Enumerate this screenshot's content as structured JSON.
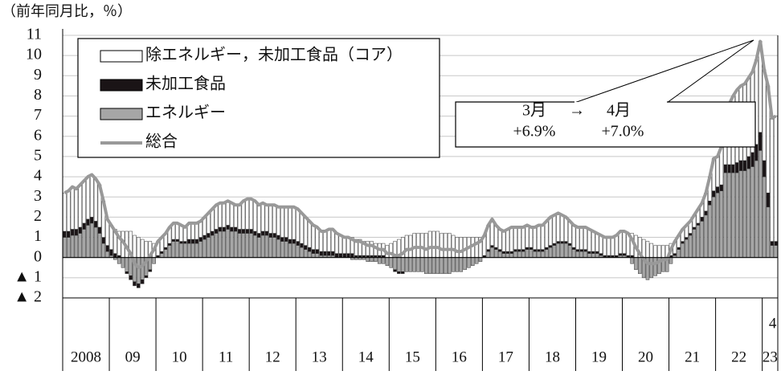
{
  "chart_data": {
    "type": "bar",
    "unit_label": "（前年同月比，％）",
    "ylim": [
      -2,
      11
    ],
    "yticks": [
      {
        "value": -2,
        "label": "▲ 2"
      },
      {
        "value": -1,
        "label": "▲ 1"
      },
      0,
      1,
      2,
      3,
      4,
      5,
      6,
      7,
      8,
      9,
      10,
      11
    ],
    "grid": true,
    "year_labels": [
      "2008",
      "09",
      "10",
      "11",
      "12",
      "13",
      "14",
      "15",
      "16",
      "17",
      "18",
      "19",
      "20",
      "21",
      "22",
      "23"
    ],
    "last_month_label": "4",
    "series": [
      {
        "name": "除エネルギー，未加工食品（コア）",
        "type": "bar",
        "color": "#ffffff",
        "values": [
          1.9,
          2.0,
          2.1,
          2.0,
          2.1,
          2.1,
          2.1,
          2.1,
          2.1,
          2.1,
          1.8,
          1.3,
          1.2,
          1.2,
          1.2,
          1.3,
          1.3,
          1.3,
          1.1,
          1.0,
          0.9,
          0.8,
          0.8,
          0.7,
          0.7,
          0.7,
          0.7,
          0.8,
          0.8,
          0.8,
          0.8,
          0.7,
          0.8,
          0.8,
          0.8,
          0.8,
          0.9,
          1.0,
          1.1,
          1.2,
          1.2,
          1.2,
          1.2,
          1.2,
          1.1,
          1.2,
          1.4,
          1.5,
          1.5,
          1.5,
          1.4,
          1.4,
          1.3,
          1.4,
          1.4,
          1.4,
          1.5,
          1.5,
          1.6,
          1.6,
          1.6,
          1.5,
          1.4,
          1.3,
          1.2,
          1.1,
          1.0,
          1.0,
          1.1,
          1.1,
          1.0,
          0.9,
          0.8,
          0.8,
          0.8,
          0.8,
          0.8,
          0.7,
          0.7,
          0.7,
          0.6,
          0.6,
          0.6,
          0.6,
          0.7,
          0.8,
          0.9,
          1.0,
          1.1,
          1.1,
          1.2,
          1.2,
          1.2,
          1.2,
          1.3,
          1.3,
          1.3,
          1.2,
          1.2,
          1.2,
          1.1,
          1.0,
          1.0,
          1.0,
          1.0,
          1.0,
          1.0,
          1.0,
          1.0,
          1.2,
          1.3,
          1.1,
          1.0,
          1.0,
          1.1,
          1.2,
          1.1,
          1.1,
          1.1,
          1.1,
          1.0,
          1.1,
          1.2,
          1.2,
          1.3,
          1.4,
          1.4,
          1.4,
          1.3,
          1.2,
          1.1,
          1.1,
          1.1,
          1.1,
          1.1,
          1.1,
          1.0,
          0.9,
          0.9,
          0.9,
          0.9,
          0.9,
          1.0,
          1.1,
          1.1,
          1.1,
          1.1,
          1.1,
          1.0,
          0.9,
          0.8,
          0.7,
          0.6,
          0.6,
          0.6,
          0.6,
          0.6,
          0.6,
          0.6,
          0.6,
          0.6,
          0.6,
          0.6,
          0.7,
          0.7,
          0.9,
          1.2,
          1.6,
          1.5,
          1.9,
          2.9,
          3.0,
          3.4,
          3.6,
          3.7,
          3.8,
          3.9,
          4.0,
          4.2,
          4.5,
          4.5,
          5.3,
          6.1,
          6.2
        ]
      },
      {
        "name": "未加工食品",
        "type": "bar",
        "color": "#1a1416",
        "values": [
          0.3,
          0.3,
          0.3,
          0.3,
          0.3,
          0.3,
          0.3,
          0.3,
          0.3,
          0.3,
          0.3,
          0.3,
          0.3,
          0.2,
          0.1,
          0.0,
          -0.1,
          -0.2,
          -0.2,
          -0.2,
          -0.2,
          -0.1,
          -0.1,
          0.0,
          0.1,
          0.1,
          0.1,
          0.1,
          0.1,
          0.1,
          0.1,
          0.1,
          0.2,
          0.2,
          0.2,
          0.2,
          0.2,
          0.2,
          0.2,
          0.2,
          0.2,
          0.2,
          0.2,
          0.2,
          0.2,
          0.2,
          0.2,
          0.2,
          0.2,
          0.2,
          0.2,
          0.2,
          0.2,
          0.2,
          0.2,
          0.2,
          0.2,
          0.2,
          0.2,
          0.2,
          0.2,
          0.2,
          0.2,
          0.2,
          0.2,
          0.2,
          0.2,
          0.2,
          0.2,
          0.2,
          0.2,
          0.2,
          0.2,
          0.2,
          0.2,
          0.1,
          0.1,
          0.1,
          0.1,
          0.1,
          0.1,
          0.1,
          0.1,
          0.0,
          0.0,
          -0.1,
          -0.1,
          -0.1,
          0.0,
          0.0,
          0.0,
          0.0,
          0.0,
          0.0,
          0.0,
          0.0,
          0.0,
          0.0,
          0.0,
          0.0,
          0.0,
          0.0,
          0.0,
          0.0,
          0.0,
          0.0,
          0.0,
          0.0,
          0.1,
          0.1,
          0.1,
          0.1,
          0.1,
          0.1,
          0.1,
          0.1,
          0.1,
          0.1,
          0.1,
          0.1,
          0.1,
          0.1,
          0.1,
          0.1,
          0.1,
          0.1,
          0.1,
          0.1,
          0.1,
          0.1,
          0.1,
          0.1,
          0.1,
          0.1,
          0.1,
          0.1,
          0.1,
          0.1,
          0.1,
          0.1,
          0.1,
          0.1,
          0.1,
          0.1,
          0.1,
          0.1,
          0.1,
          0.0,
          0.0,
          0.0,
          0.0,
          0.0,
          0.0,
          0.0,
          0.0,
          0.0,
          0.1,
          0.1,
          0.1,
          0.1,
          0.1,
          0.1,
          0.1,
          0.1,
          0.2,
          0.2,
          0.2,
          0.3,
          0.3,
          0.3,
          0.4,
          0.4,
          0.4,
          0.5,
          0.5,
          0.5,
          0.6,
          0.7,
          0.8,
          0.9,
          0.8,
          0.7,
          0.2,
          0.2
        ]
      },
      {
        "name": "エネルギー",
        "type": "bar",
        "color": "#a6a6a6",
        "values": [
          1.0,
          1.0,
          1.1,
          1.1,
          1.2,
          1.4,
          1.6,
          1.7,
          1.5,
          1.2,
          0.7,
          0.3,
          0.1,
          -0.1,
          -0.3,
          -0.5,
          -0.7,
          -0.9,
          -1.2,
          -1.3,
          -1.1,
          -0.9,
          -0.6,
          -0.3,
          0.0,
          0.2,
          0.4,
          0.6,
          0.8,
          0.8,
          0.7,
          0.7,
          0.7,
          0.7,
          0.7,
          0.8,
          0.9,
          1.0,
          1.1,
          1.2,
          1.3,
          1.3,
          1.4,
          1.3,
          1.3,
          1.2,
          1.2,
          1.2,
          1.2,
          1.1,
          1.0,
          1.1,
          1.1,
          1.0,
          1.0,
          0.9,
          0.8,
          0.8,
          0.7,
          0.7,
          0.6,
          0.5,
          0.4,
          0.3,
          0.2,
          0.2,
          0.1,
          0.1,
          0.1,
          0.1,
          0.0,
          0.0,
          0.0,
          0.0,
          -0.1,
          -0.1,
          -0.1,
          -0.1,
          -0.2,
          -0.2,
          -0.2,
          -0.3,
          -0.3,
          -0.4,
          -0.5,
          -0.6,
          -0.7,
          -0.7,
          -0.7,
          -0.7,
          -0.7,
          -0.7,
          -0.7,
          -0.8,
          -0.8,
          -0.8,
          -0.8,
          -0.8,
          -0.8,
          -0.8,
          -0.7,
          -0.7,
          -0.7,
          -0.6,
          -0.5,
          -0.4,
          -0.3,
          -0.2,
          0.0,
          0.3,
          0.5,
          0.4,
          0.3,
          0.2,
          0.2,
          0.2,
          0.3,
          0.3,
          0.3,
          0.4,
          0.4,
          0.3,
          0.3,
          0.3,
          0.4,
          0.5,
          0.6,
          0.7,
          0.7,
          0.7,
          0.6,
          0.4,
          0.3,
          0.3,
          0.3,
          0.2,
          0.2,
          0.2,
          0.1,
          0.0,
          0.0,
          0.0,
          0.0,
          0.1,
          0.1,
          0.0,
          -0.3,
          -0.6,
          -0.8,
          -1.0,
          -1.1,
          -1.0,
          -0.9,
          -0.8,
          -0.7,
          -0.7,
          -0.3,
          0.1,
          0.4,
          0.7,
          0.9,
          1.1,
          1.4,
          1.6,
          1.8,
          2.1,
          2.6,
          3.0,
          3.2,
          3.3,
          4.2,
          4.2,
          4.2,
          4.2,
          4.3,
          4.3,
          4.4,
          4.5,
          4.8,
          5.3,
          4.0,
          2.5,
          0.6,
          0.6
        ]
      },
      {
        "name": "総合",
        "type": "line",
        "color": "#999999",
        "values": [
          3.2,
          3.3,
          3.5,
          3.4,
          3.6,
          3.8,
          4.0,
          4.1,
          3.9,
          3.6,
          2.8,
          1.9,
          1.6,
          1.3,
          1.0,
          0.8,
          0.5,
          0.2,
          -0.3,
          -0.5,
          -0.4,
          -0.2,
          0.1,
          0.4,
          0.8,
          1.0,
          1.2,
          1.5,
          1.7,
          1.7,
          1.6,
          1.5,
          1.7,
          1.7,
          1.7,
          1.8,
          2.0,
          2.2,
          2.4,
          2.6,
          2.7,
          2.7,
          2.8,
          2.7,
          2.6,
          2.6,
          2.8,
          2.9,
          2.9,
          2.8,
          2.6,
          2.7,
          2.6,
          2.6,
          2.6,
          2.5,
          2.5,
          2.5,
          2.5,
          2.5,
          2.4,
          2.2,
          2.0,
          1.8,
          1.6,
          1.5,
          1.3,
          1.3,
          1.4,
          1.4,
          1.2,
          1.1,
          1.0,
          1.0,
          0.9,
          0.8,
          0.8,
          0.7,
          0.6,
          0.6,
          0.5,
          0.4,
          0.4,
          0.2,
          0.2,
          0.1,
          0.1,
          0.2,
          0.4,
          0.4,
          0.5,
          0.5,
          0.5,
          0.4,
          0.5,
          0.5,
          0.5,
          0.4,
          0.4,
          0.4,
          0.4,
          0.3,
          0.3,
          0.4,
          0.5,
          0.6,
          0.7,
          0.8,
          1.1,
          1.6,
          1.9,
          1.6,
          1.4,
          1.3,
          1.4,
          1.5,
          1.5,
          1.5,
          1.5,
          1.6,
          1.5,
          1.5,
          1.6,
          1.6,
          1.8,
          2.0,
          2.1,
          2.2,
          2.1,
          2.0,
          1.8,
          1.6,
          1.5,
          1.5,
          1.5,
          1.4,
          1.3,
          1.2,
          1.1,
          1.0,
          1.0,
          1.0,
          1.1,
          1.3,
          1.3,
          1.2,
          0.9,
          0.5,
          0.2,
          -0.1,
          -0.3,
          -0.3,
          -0.3,
          -0.2,
          -0.1,
          -0.1,
          0.4,
          0.8,
          1.1,
          1.4,
          1.6,
          1.8,
          2.1,
          2.4,
          2.7,
          3.2,
          4.0,
          4.9,
          5.0,
          5.5,
          7.5,
          7.6,
          8.0,
          8.3,
          8.5,
          8.6,
          8.9,
          9.2,
          9.8,
          10.7,
          9.3,
          8.5,
          6.9,
          7.0
        ]
      }
    ],
    "annotation": {
      "from": "3月",
      "arrow": "→",
      "to": "4月",
      "from_value": "+6.9%",
      "to_value": "+7.0%"
    }
  }
}
